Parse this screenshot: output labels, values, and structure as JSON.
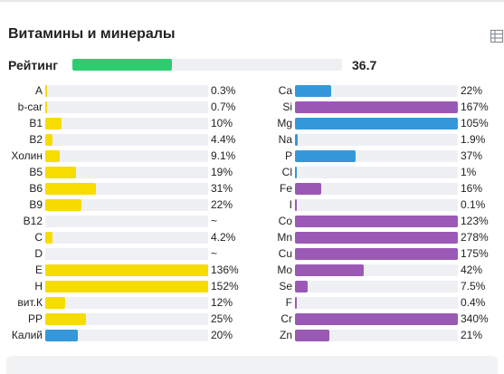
{
  "title": "Витамины и минералы",
  "rating": {
    "label": "Рейтинг",
    "value": "36.7",
    "fraction": 0.37,
    "color": "#2ecc71"
  },
  "colors": {
    "vitamin": "#f7dc00",
    "mineral": "#9b59b6",
    "blue": "#3498db"
  },
  "vitamins": [
    {
      "label": "A",
      "value": "0.3%",
      "fraction": 0.003,
      "color": "#f7dc00"
    },
    {
      "label": "b-car",
      "value": "0.7%",
      "fraction": 0.007,
      "color": "#f7dc00"
    },
    {
      "label": "B1",
      "value": "10%",
      "fraction": 0.1,
      "color": "#f7dc00"
    },
    {
      "label": "B2",
      "value": "4.4%",
      "fraction": 0.044,
      "color": "#f7dc00"
    },
    {
      "label": "Холин",
      "value": "9.1%",
      "fraction": 0.091,
      "color": "#f7dc00"
    },
    {
      "label": "B5",
      "value": "19%",
      "fraction": 0.19,
      "color": "#f7dc00"
    },
    {
      "label": "B6",
      "value": "31%",
      "fraction": 0.31,
      "color": "#f7dc00"
    },
    {
      "label": "B9",
      "value": "22%",
      "fraction": 0.22,
      "color": "#f7dc00"
    },
    {
      "label": "B12",
      "value": "~",
      "fraction": 0,
      "color": "#f7dc00"
    },
    {
      "label": "C",
      "value": "4.2%",
      "fraction": 0.042,
      "color": "#f7dc00"
    },
    {
      "label": "D",
      "value": "~",
      "fraction": 0,
      "color": "#f7dc00"
    },
    {
      "label": "E",
      "value": "136%",
      "fraction": 1.0,
      "color": "#f7dc00"
    },
    {
      "label": "H",
      "value": "152%",
      "fraction": 1.0,
      "color": "#f7dc00"
    },
    {
      "label": "вит.К",
      "value": "12%",
      "fraction": 0.12,
      "color": "#f7dc00"
    },
    {
      "label": "PP",
      "value": "25%",
      "fraction": 0.25,
      "color": "#f7dc00"
    },
    {
      "label": "Калий",
      "value": "20%",
      "fraction": 0.2,
      "color": "#3498db"
    }
  ],
  "minerals": [
    {
      "label": "Ca",
      "value": "22%",
      "fraction": 0.22,
      "color": "#3498db"
    },
    {
      "label": "Si",
      "value": "167%",
      "fraction": 1.0,
      "color": "#9b59b6"
    },
    {
      "label": "Mg",
      "value": "105%",
      "fraction": 1.0,
      "color": "#3498db"
    },
    {
      "label": "Na",
      "value": "1.9%",
      "fraction": 0.019,
      "color": "#3498db"
    },
    {
      "label": "P",
      "value": "37%",
      "fraction": 0.37,
      "color": "#3498db"
    },
    {
      "label": "Cl",
      "value": "1%",
      "fraction": 0.01,
      "color": "#3498db"
    },
    {
      "label": "Fe",
      "value": "16%",
      "fraction": 0.16,
      "color": "#9b59b6"
    },
    {
      "label": "I",
      "value": "0.1%",
      "fraction": 0.001,
      "color": "#9b59b6"
    },
    {
      "label": "Co",
      "value": "123%",
      "fraction": 1.0,
      "color": "#9b59b6"
    },
    {
      "label": "Mn",
      "value": "278%",
      "fraction": 1.0,
      "color": "#9b59b6"
    },
    {
      "label": "Cu",
      "value": "175%",
      "fraction": 1.0,
      "color": "#9b59b6"
    },
    {
      "label": "Mo",
      "value": "42%",
      "fraction": 0.42,
      "color": "#9b59b6"
    },
    {
      "label": "Se",
      "value": "7.5%",
      "fraction": 0.075,
      "color": "#9b59b6"
    },
    {
      "label": "F",
      "value": "0.4%",
      "fraction": 0.004,
      "color": "#9b59b6"
    },
    {
      "label": "Cr",
      "value": "340%",
      "fraction": 1.0,
      "color": "#9b59b6"
    },
    {
      "label": "Zn",
      "value": "21%",
      "fraction": 0.21,
      "color": "#9b59b6"
    }
  ],
  "icons": {
    "table": "table-icon"
  }
}
